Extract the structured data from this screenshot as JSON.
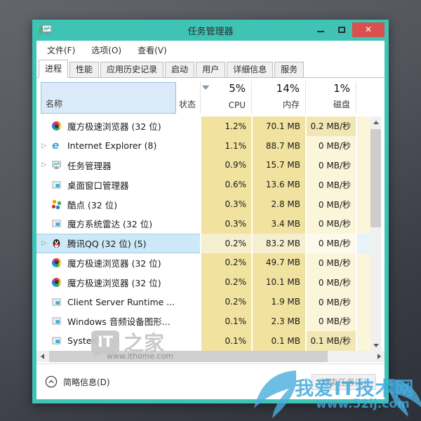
{
  "window": {
    "title": "任务管理器",
    "controls": {
      "minimize": "最小化",
      "maximize": "最大化",
      "close": "✕"
    }
  },
  "menu": [
    "文件(F)",
    "选项(O)",
    "查看(V)"
  ],
  "tabs": [
    "进程",
    "性能",
    "应用历史记录",
    "启动",
    "用户",
    "详细信息",
    "服务"
  ],
  "active_tab": "进程",
  "table": {
    "headers": {
      "name": "名称",
      "status": "状态",
      "cpu": "CPU",
      "memory": "内存",
      "disk": "磁盘"
    },
    "totals": {
      "cpu": "5%",
      "memory": "14%",
      "disk": "1%"
    },
    "rows": [
      {
        "name": "魔方极速浏览器 (32 位)",
        "icon": "color-wheel",
        "expandable": false,
        "selected": false,
        "status": "",
        "cpu": "1.2%",
        "memory": "70.1 MB",
        "disk": "0.2 MB/秒",
        "disk_heat": "low"
      },
      {
        "name": "Internet Explorer (8)",
        "icon": "ie",
        "expandable": true,
        "selected": false,
        "status": "",
        "cpu": "1.1%",
        "memory": "88.7 MB",
        "disk": "0 MB/秒",
        "disk_heat": "zero"
      },
      {
        "name": "任务管理器",
        "icon": "task-manager",
        "expandable": true,
        "selected": false,
        "status": "",
        "cpu": "0.9%",
        "memory": "15.7 MB",
        "disk": "0 MB/秒",
        "disk_heat": "zero"
      },
      {
        "name": "桌面窗口管理器",
        "icon": "app-window",
        "expandable": false,
        "selected": false,
        "status": "",
        "cpu": "0.6%",
        "memory": "13.6 MB",
        "disk": "0 MB/秒",
        "disk_heat": "zero"
      },
      {
        "name": "酷点 (32 位)",
        "icon": "color-dots",
        "expandable": false,
        "selected": false,
        "status": "",
        "cpu": "0.3%",
        "memory": "2.8 MB",
        "disk": "0 MB/秒",
        "disk_heat": "zero"
      },
      {
        "name": "魔方系统雷达 (32 位)",
        "icon": "app-window",
        "expandable": false,
        "selected": false,
        "status": "",
        "cpu": "0.3%",
        "memory": "3.4 MB",
        "disk": "0 MB/秒",
        "disk_heat": "zero"
      },
      {
        "name": "腾讯QQ (32 位) (5)",
        "icon": "qq",
        "expandable": true,
        "selected": true,
        "status": "",
        "cpu": "0.2%",
        "memory": "83.2 MB",
        "disk": "0 MB/秒",
        "disk_heat": "zero"
      },
      {
        "name": "魔方极速浏览器 (32 位)",
        "icon": "color-wheel",
        "expandable": false,
        "selected": false,
        "status": "",
        "cpu": "0.2%",
        "memory": "49.7 MB",
        "disk": "0 MB/秒",
        "disk_heat": "zero"
      },
      {
        "name": "魔方极速浏览器 (32 位)",
        "icon": "color-wheel",
        "expandable": false,
        "selected": false,
        "status": "",
        "cpu": "0.2%",
        "memory": "10.1 MB",
        "disk": "0 MB/秒",
        "disk_heat": "zero"
      },
      {
        "name": "Client Server Runtime ...",
        "icon": "app-window",
        "expandable": false,
        "selected": false,
        "status": "",
        "cpu": "0.2%",
        "memory": "1.9 MB",
        "disk": "0 MB/秒",
        "disk_heat": "zero"
      },
      {
        "name": "Windows 音频设备图形...",
        "icon": "app-window",
        "expandable": false,
        "selected": false,
        "status": "",
        "cpu": "0.1%",
        "memory": "2.3 MB",
        "disk": "0 MB/秒",
        "disk_heat": "zero"
      },
      {
        "name": "System",
        "icon": "app-window",
        "expandable": false,
        "selected": false,
        "status": "",
        "cpu": "0.1%",
        "memory": "0.1 MB",
        "disk": "0.1 MB/秒",
        "disk_heat": "low"
      }
    ]
  },
  "footer": {
    "toggle": "简略信息(D)",
    "end_task": "结束任务(E)"
  },
  "watermarks": {
    "ithome_badge": "IT",
    "ithome_suffix": "之家",
    "ithome_url": "www.ithome.com",
    "site_title": "我爱IT技术网",
    "site_url": "www.52ij.com"
  },
  "colors": {
    "titlebar_teal": "#3fc3b5",
    "close_red": "#d9504e",
    "heat_mid": "#f1e2a0",
    "heat_low": "#f2e7b4",
    "heat_zero": "#fbf5da",
    "selection_blue": "#cde8f6",
    "header_box_blue": "#dbeaf8",
    "watermark_blue": "#3fa9de"
  }
}
